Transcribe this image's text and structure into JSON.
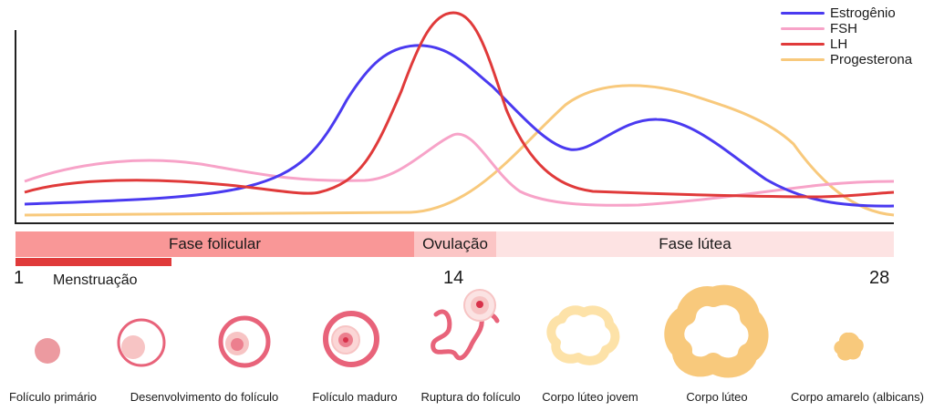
{
  "chart_data": {
    "type": "line",
    "title": "",
    "xlabel": "",
    "ylabel": "",
    "grid": false,
    "legend_position": "top-right",
    "x_ticks": [
      "1",
      "14",
      "28"
    ],
    "series": [
      {
        "name": "Estrogênio",
        "color": "#4a3af0"
      },
      {
        "name": "FSH",
        "color": "#f7a3c8"
      },
      {
        "name": "LH",
        "color": "#e03a3a"
      },
      {
        "name": "Progesterona",
        "color": "#f8c97c"
      }
    ]
  },
  "phases": {
    "follicular": {
      "label": "Fase folicular",
      "color": "#f99797"
    },
    "ovulation": {
      "label": "Ovulação",
      "color": "#fbc5c5"
    },
    "luteal": {
      "label": "Fase lútea",
      "color": "#fde3e3"
    }
  },
  "menstruation": {
    "label": "Menstruação",
    "color": "#e03a3a"
  },
  "days": {
    "start": "1",
    "ovulation": "14",
    "end": "28"
  },
  "stages": [
    {
      "label": "Folículo primário"
    },
    {
      "label": "Desenvolvimento do folículo"
    },
    {
      "label": "Folículo maduro"
    },
    {
      "label": "Ruptura do folículo"
    },
    {
      "label": "Corpo lúteo jovem"
    },
    {
      "label": "Corpo lúteo"
    },
    {
      "label": "Corpo amarelo (albicans)"
    }
  ]
}
